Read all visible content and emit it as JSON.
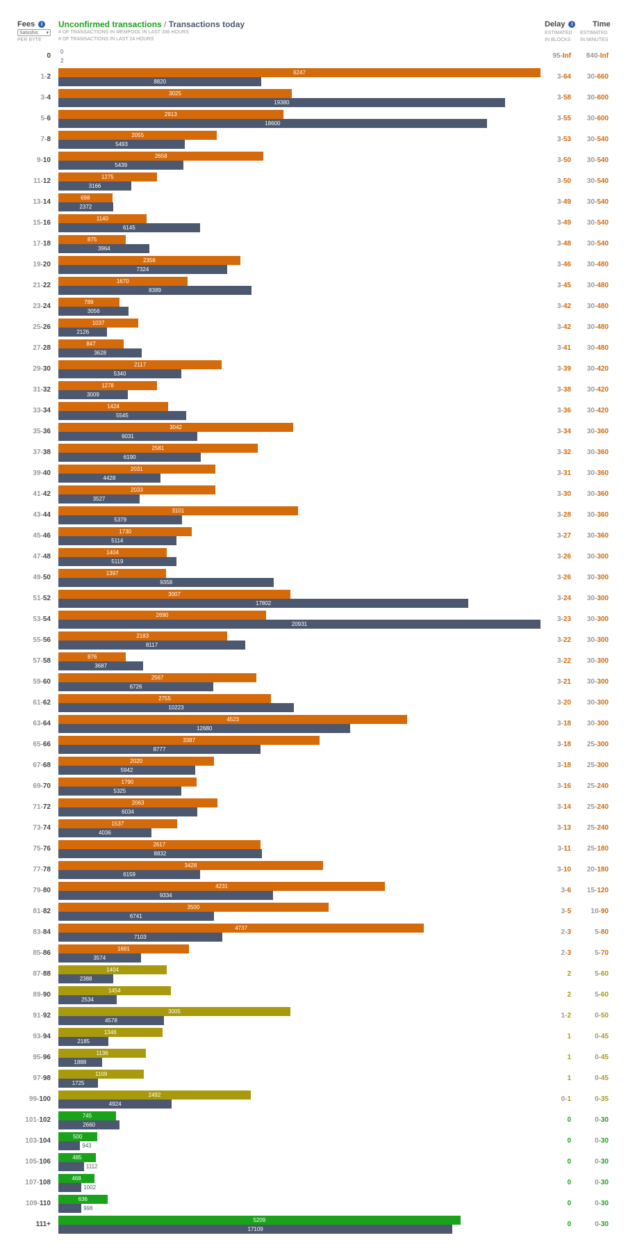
{
  "header": {
    "fees_label": "Fees",
    "info_glyph": "i",
    "unit_select_value": "Satoshis",
    "per_byte": "PER BYTE",
    "unconfirmed_label": "Unconfirmed transactions",
    "separator": " / ",
    "today_label": "Transactions today",
    "sub_mempool": "# OF TRANSACTIONS IN MEMPOOL IN LAST 336 HOURS",
    "sub_today": "# OF TRANSACTIONS IN LAST 24 HOURS",
    "delay_label": "Delay",
    "time_label": "Time",
    "estimated": "ESTIMATED",
    "in_blocks": "IN BLOCKS",
    "in_minutes": "IN MINUTES"
  },
  "colors": {
    "orange": "#d46a0a",
    "olive": "#a89a0c",
    "green": "#1aa31a",
    "slate": "#4c5870",
    "text_orange": "#d46a0a",
    "text_olive": "#a89a0c",
    "text_green": "#1aa31a"
  },
  "scales": {
    "unconfirmed_max": 6247,
    "today_max": 20931
  },
  "rows": [
    {
      "lo": "",
      "hi": "0",
      "unconfirmed": 0,
      "today": 2,
      "dlo": "95",
      "dhi": "Inf",
      "tlo": "840",
      "thi": "Inf",
      "tone": "orange"
    },
    {
      "lo": "1",
      "hi": "2",
      "unconfirmed": 6247,
      "today": 8820,
      "dlo": "3",
      "dhi": "64",
      "tlo": "30",
      "thi": "660",
      "tone": "orange"
    },
    {
      "lo": "3",
      "hi": "4",
      "unconfirmed": 3025,
      "today": 19380,
      "dlo": "3",
      "dhi": "58",
      "tlo": "30",
      "thi": "600",
      "tone": "orange"
    },
    {
      "lo": "5",
      "hi": "6",
      "unconfirmed": 2913,
      "today": 18600,
      "dlo": "3",
      "dhi": "55",
      "tlo": "30",
      "thi": "600",
      "tone": "orange"
    },
    {
      "lo": "7",
      "hi": "8",
      "unconfirmed": 2055,
      "today": 5493,
      "dlo": "3",
      "dhi": "53",
      "tlo": "30",
      "thi": "540",
      "tone": "orange"
    },
    {
      "lo": "9",
      "hi": "10",
      "unconfirmed": 2658,
      "today": 5439,
      "dlo": "3",
      "dhi": "50",
      "tlo": "30",
      "thi": "540",
      "tone": "orange"
    },
    {
      "lo": "11",
      "hi": "12",
      "unconfirmed": 1275,
      "today": 3166,
      "dlo": "3",
      "dhi": "50",
      "tlo": "30",
      "thi": "540",
      "tone": "orange"
    },
    {
      "lo": "13",
      "hi": "14",
      "unconfirmed": 698,
      "today": 2372,
      "dlo": "3",
      "dhi": "49",
      "tlo": "30",
      "thi": "540",
      "tone": "orange"
    },
    {
      "lo": "15",
      "hi": "16",
      "unconfirmed": 1140,
      "today": 6145,
      "dlo": "3",
      "dhi": "49",
      "tlo": "30",
      "thi": "540",
      "tone": "orange"
    },
    {
      "lo": "17",
      "hi": "18",
      "unconfirmed": 875,
      "today": 3964,
      "dlo": "3",
      "dhi": "48",
      "tlo": "30",
      "thi": "540",
      "tone": "orange"
    },
    {
      "lo": "19",
      "hi": "20",
      "unconfirmed": 2356,
      "today": 7324,
      "dlo": "3",
      "dhi": "46",
      "tlo": "30",
      "thi": "480",
      "tone": "orange"
    },
    {
      "lo": "21",
      "hi": "22",
      "unconfirmed": 1670,
      "today": 8389,
      "dlo": "3",
      "dhi": "45",
      "tlo": "30",
      "thi": "480",
      "tone": "orange"
    },
    {
      "lo": "23",
      "hi": "24",
      "unconfirmed": 789,
      "today": 3056,
      "dlo": "3",
      "dhi": "42",
      "tlo": "30",
      "thi": "480",
      "tone": "orange"
    },
    {
      "lo": "25",
      "hi": "26",
      "unconfirmed": 1037,
      "today": 2126,
      "dlo": "3",
      "dhi": "42",
      "tlo": "30",
      "thi": "480",
      "tone": "orange"
    },
    {
      "lo": "27",
      "hi": "28",
      "unconfirmed": 847,
      "today": 3628,
      "dlo": "3",
      "dhi": "41",
      "tlo": "30",
      "thi": "480",
      "tone": "orange"
    },
    {
      "lo": "29",
      "hi": "30",
      "unconfirmed": 2117,
      "today": 5340,
      "dlo": "3",
      "dhi": "39",
      "tlo": "30",
      "thi": "420",
      "tone": "orange"
    },
    {
      "lo": "31",
      "hi": "32",
      "unconfirmed": 1278,
      "today": 3009,
      "dlo": "3",
      "dhi": "38",
      "tlo": "30",
      "thi": "420",
      "tone": "orange"
    },
    {
      "lo": "33",
      "hi": "34",
      "unconfirmed": 1424,
      "today": 5545,
      "dlo": "3",
      "dhi": "36",
      "tlo": "30",
      "thi": "420",
      "tone": "orange"
    },
    {
      "lo": "35",
      "hi": "36",
      "unconfirmed": 3042,
      "today": 6031,
      "dlo": "3",
      "dhi": "34",
      "tlo": "30",
      "thi": "360",
      "tone": "orange"
    },
    {
      "lo": "37",
      "hi": "38",
      "unconfirmed": 2581,
      "today": 6190,
      "dlo": "3",
      "dhi": "32",
      "tlo": "30",
      "thi": "360",
      "tone": "orange"
    },
    {
      "lo": "39",
      "hi": "40",
      "unconfirmed": 2031,
      "today": 4428,
      "dlo": "3",
      "dhi": "31",
      "tlo": "30",
      "thi": "360",
      "tone": "orange"
    },
    {
      "lo": "41",
      "hi": "42",
      "unconfirmed": 2033,
      "today": 3527,
      "dlo": "3",
      "dhi": "30",
      "tlo": "30",
      "thi": "360",
      "tone": "orange"
    },
    {
      "lo": "43",
      "hi": "44",
      "unconfirmed": 3101,
      "today": 5379,
      "dlo": "3",
      "dhi": "28",
      "tlo": "30",
      "thi": "360",
      "tone": "orange"
    },
    {
      "lo": "45",
      "hi": "46",
      "unconfirmed": 1730,
      "today": 5114,
      "dlo": "3",
      "dhi": "27",
      "tlo": "30",
      "thi": "360",
      "tone": "orange"
    },
    {
      "lo": "47",
      "hi": "48",
      "unconfirmed": 1404,
      "today": 5119,
      "dlo": "3",
      "dhi": "26",
      "tlo": "30",
      "thi": "300",
      "tone": "orange"
    },
    {
      "lo": "49",
      "hi": "50",
      "unconfirmed": 1397,
      "today": 9358,
      "dlo": "3",
      "dhi": "26",
      "tlo": "30",
      "thi": "300",
      "tone": "orange"
    },
    {
      "lo": "51",
      "hi": "52",
      "unconfirmed": 3007,
      "today": 17802,
      "dlo": "3",
      "dhi": "24",
      "tlo": "30",
      "thi": "300",
      "tone": "orange"
    },
    {
      "lo": "53",
      "hi": "54",
      "unconfirmed": 2690,
      "today": 20931,
      "dlo": "3",
      "dhi": "23",
      "tlo": "30",
      "thi": "300",
      "tone": "orange"
    },
    {
      "lo": "55",
      "hi": "56",
      "unconfirmed": 2183,
      "today": 8117,
      "dlo": "3",
      "dhi": "22",
      "tlo": "30",
      "thi": "300",
      "tone": "orange"
    },
    {
      "lo": "57",
      "hi": "58",
      "unconfirmed": 876,
      "today": 3687,
      "dlo": "3",
      "dhi": "22",
      "tlo": "30",
      "thi": "300",
      "tone": "orange"
    },
    {
      "lo": "59",
      "hi": "60",
      "unconfirmed": 2567,
      "today": 6726,
      "dlo": "3",
      "dhi": "21",
      "tlo": "30",
      "thi": "300",
      "tone": "orange"
    },
    {
      "lo": "61",
      "hi": "62",
      "unconfirmed": 2755,
      "today": 10223,
      "dlo": "3",
      "dhi": "20",
      "tlo": "30",
      "thi": "300",
      "tone": "orange"
    },
    {
      "lo": "63",
      "hi": "64",
      "unconfirmed": 4523,
      "today": 12680,
      "dlo": "3",
      "dhi": "18",
      "tlo": "30",
      "thi": "300",
      "tone": "orange"
    },
    {
      "lo": "65",
      "hi": "66",
      "unconfirmed": 3387,
      "today": 8777,
      "dlo": "3",
      "dhi": "18",
      "tlo": "25",
      "thi": "300",
      "tone": "orange"
    },
    {
      "lo": "67",
      "hi": "68",
      "unconfirmed": 2020,
      "today": 5942,
      "dlo": "3",
      "dhi": "18",
      "tlo": "25",
      "thi": "300",
      "tone": "orange"
    },
    {
      "lo": "69",
      "hi": "70",
      "unconfirmed": 1790,
      "today": 5325,
      "dlo": "3",
      "dhi": "16",
      "tlo": "25",
      "thi": "240",
      "tone": "orange"
    },
    {
      "lo": "71",
      "hi": "72",
      "unconfirmed": 2063,
      "today": 6034,
      "dlo": "3",
      "dhi": "14",
      "tlo": "25",
      "thi": "240",
      "tone": "orange"
    },
    {
      "lo": "73",
      "hi": "74",
      "unconfirmed": 1537,
      "today": 4036,
      "dlo": "3",
      "dhi": "13",
      "tlo": "25",
      "thi": "240",
      "tone": "orange"
    },
    {
      "lo": "75",
      "hi": "76",
      "unconfirmed": 2617,
      "today": 8832,
      "dlo": "3",
      "dhi": "11",
      "tlo": "25",
      "thi": "180",
      "tone": "orange"
    },
    {
      "lo": "77",
      "hi": "78",
      "unconfirmed": 3428,
      "today": 6159,
      "dlo": "3",
      "dhi": "10",
      "tlo": "20",
      "thi": "180",
      "tone": "orange"
    },
    {
      "lo": "79",
      "hi": "80",
      "unconfirmed": 4231,
      "today": 9334,
      "dlo": "3",
      "dhi": "6",
      "tlo": "15",
      "thi": "120",
      "tone": "orange"
    },
    {
      "lo": "81",
      "hi": "82",
      "unconfirmed": 3500,
      "today": 6741,
      "dlo": "3",
      "dhi": "5",
      "tlo": "10",
      "thi": "90",
      "tone": "orange"
    },
    {
      "lo": "83",
      "hi": "84",
      "unconfirmed": 4737,
      "today": 7103,
      "dlo": "2",
      "dhi": "3",
      "tlo": "5",
      "thi": "80",
      "tone": "orange"
    },
    {
      "lo": "85",
      "hi": "86",
      "unconfirmed": 1691,
      "today": 3574,
      "dlo": "2",
      "dhi": "3",
      "tlo": "5",
      "thi": "70",
      "tone": "orange"
    },
    {
      "lo": "87",
      "hi": "88",
      "unconfirmed": 1404,
      "today": 2388,
      "dlo": "",
      "dhi": "2",
      "tlo": "5",
      "thi": "60",
      "tone": "olive"
    },
    {
      "lo": "89",
      "hi": "90",
      "unconfirmed": 1454,
      "today": 2534,
      "dlo": "",
      "dhi": "2",
      "tlo": "5",
      "thi": "60",
      "tone": "olive"
    },
    {
      "lo": "91",
      "hi": "92",
      "unconfirmed": 3005,
      "today": 4578,
      "dlo": "1",
      "dhi": "2",
      "tlo": "0",
      "thi": "50",
      "tone": "olive"
    },
    {
      "lo": "93",
      "hi": "94",
      "unconfirmed": 1346,
      "today": 2185,
      "dlo": "",
      "dhi": "1",
      "tlo": "0",
      "thi": "45",
      "tone": "olive"
    },
    {
      "lo": "95",
      "hi": "96",
      "unconfirmed": 1136,
      "today": 1888,
      "dlo": "",
      "dhi": "1",
      "tlo": "0",
      "thi": "45",
      "tone": "olive"
    },
    {
      "lo": "97",
      "hi": "98",
      "unconfirmed": 1109,
      "today": 1725,
      "dlo": "",
      "dhi": "1",
      "tlo": "0",
      "thi": "45",
      "tone": "olive"
    },
    {
      "lo": "99",
      "hi": "100",
      "unconfirmed": 2492,
      "today": 4924,
      "dlo": "0",
      "dhi": "1",
      "tlo": "0",
      "thi": "35",
      "tone": "olive"
    },
    {
      "lo": "101",
      "hi": "102",
      "unconfirmed": 745,
      "today": 2660,
      "dlo": "",
      "dhi": "0",
      "tlo": "0",
      "thi": "30",
      "tone": "green"
    },
    {
      "lo": "103",
      "hi": "104",
      "unconfirmed": 500,
      "today": 943,
      "dlo": "",
      "dhi": "0",
      "tlo": "0",
      "thi": "30",
      "tone": "green"
    },
    {
      "lo": "105",
      "hi": "106",
      "unconfirmed": 485,
      "today": 1112,
      "dlo": "",
      "dhi": "0",
      "tlo": "0",
      "thi": "30",
      "tone": "green"
    },
    {
      "lo": "107",
      "hi": "108",
      "unconfirmed": 468,
      "today": 1002,
      "dlo": "",
      "dhi": "0",
      "tlo": "0",
      "thi": "30",
      "tone": "green"
    },
    {
      "lo": "109",
      "hi": "110",
      "unconfirmed": 636,
      "today": 998,
      "dlo": "",
      "dhi": "0",
      "tlo": "0",
      "thi": "30",
      "tone": "green"
    },
    {
      "lo": "",
      "hi": "111+",
      "unconfirmed": 5209,
      "today": 17109,
      "dlo": "",
      "dhi": "0",
      "tlo": "0",
      "thi": "30",
      "tone": "green"
    }
  ]
}
